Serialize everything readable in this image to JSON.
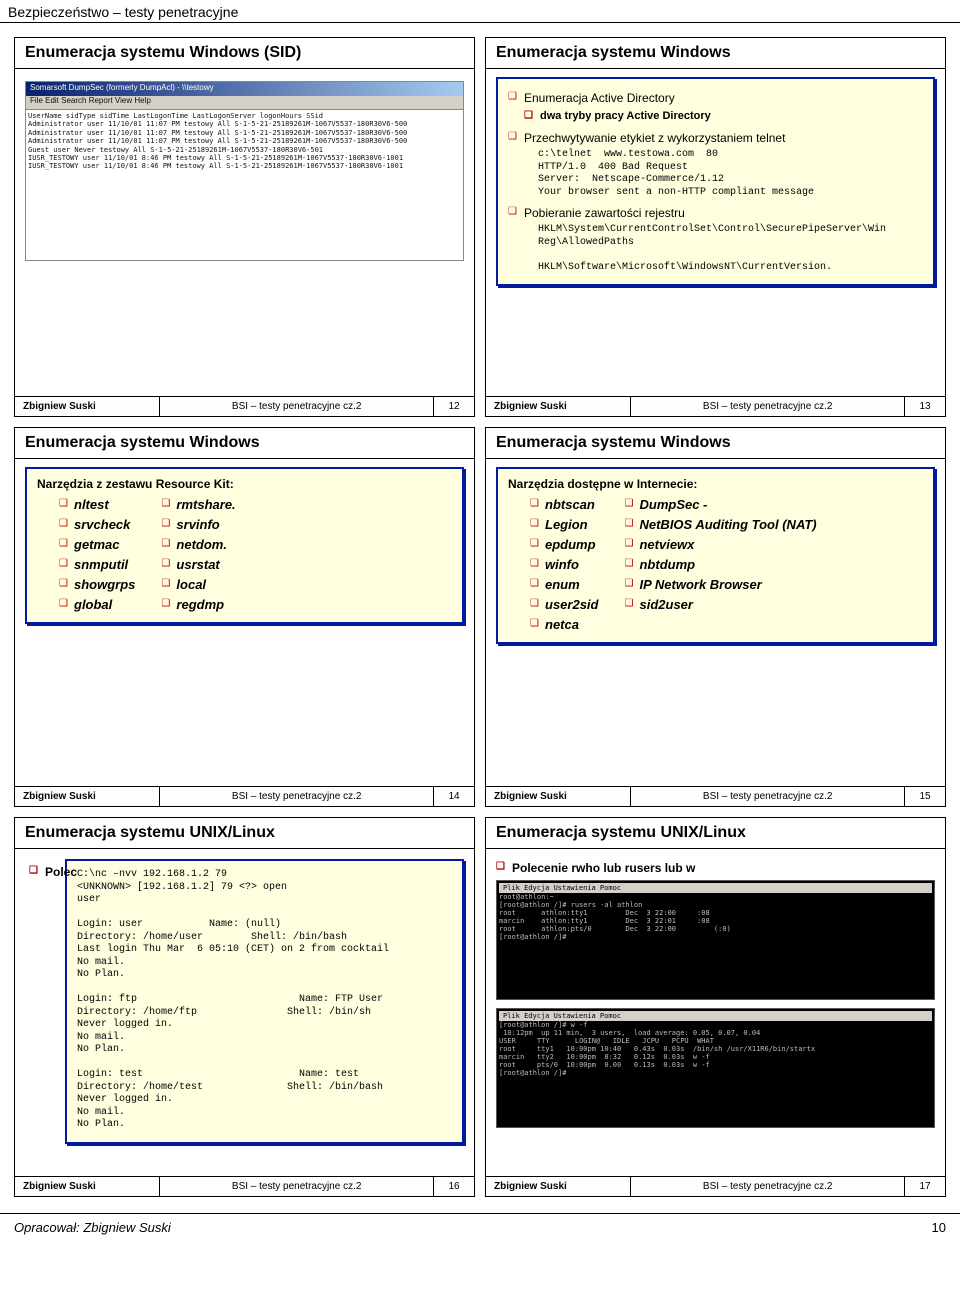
{
  "page": {
    "header": "Bezpieczeństwo – testy penetracyjne",
    "footer_author": "Opracował: Zbigniew Suski",
    "footer_page": "10"
  },
  "common": {
    "author": "Zbigniew Suski",
    "course": "BSI – testy penetracyjne cz.2"
  },
  "s12": {
    "title": "Enumeracja systemu Windows (SID)",
    "num": "12",
    "win_title": "Somarsoft DumpSec (formerly DumpAcl) - \\\\testowy",
    "win_menu": "File  Edit  Search  Report  View  Help",
    "rows": [
      "UserName       sidType sidTime LastLogonTime      LastLogonServer logonHours SSid",
      "Administrator  user           11/10/01 11:07 PM testowy         All        S-1-5-21-25189261M-1067V5537-180R30V6-500",
      "Administrator  user           11/10/01 11:07 PM testowy         All        S-1-5-21-25189261M-1067V5537-180R30V6-500",
      "Administrator  user           11/10/01 11:07 PM testowy         All        S-1-5-21-25189261M-1067V5537-180R30V6-500",
      "Guest          user           Never             testowy         All        S-1-5-21-25189261M-1067V5537-180R30V6-501",
      "IUSR_TESTOWY   user           11/10/01 8:46 PM  testowy         All        S-1-5-21-25189261M-1067V5537-180R30V6-1001",
      "IUSR_TESTOWY   user           11/10/01 8:46 PM  testowy         All        S-1-5-21-25189261M-1067V5537-180R30V6-1001"
    ]
  },
  "s13": {
    "title": "Enumeracja systemu Windows",
    "num": "13",
    "b1": "Enumeracja Active Directory",
    "sub": "dwa tryby pracy Active Directory",
    "b2": "Przechwytywanie etykiet z wykorzystaniem telnet",
    "mono1": "c:\\telnet  www.testowa.com  80\nHTTP/1.0  400 Bad Request\nServer:  Netscape-Commerce/1.12\nYour browser sent a non-HTTP compliant message",
    "b3": "Pobieranie zawartości rejestru",
    "mono2": "HKLM\\System\\CurrentControlSet\\Control\\SecurePipeServer\\Win\nReg\\AllowedPaths\n\nHKLM\\Software\\Microsoft\\WindowsNT\\CurrentVersion."
  },
  "s14": {
    "title": "Enumeracja systemu Windows",
    "num": "14",
    "subhead": "Narzędzia z zestawu Resource Kit:",
    "col1": [
      "nltest",
      "srvcheck",
      "getmac",
      "snmputil",
      "showgrps",
      "global"
    ],
    "col2": [
      "rmtshare.",
      "srvinfo",
      "netdom.",
      "usrstat",
      "local",
      "regdmp"
    ]
  },
  "s15": {
    "title": "Enumeracja systemu Windows",
    "num": "15",
    "subhead": "Narzędzia dostępne w Internecie:",
    "col1": [
      "nbtscan",
      "Legion",
      "epdump",
      "winfo",
      "enum",
      "user2sid",
      "netca"
    ],
    "col2": [
      "DumpSec -",
      "NetBIOS Auditing Tool (NAT)",
      "netviewx",
      "nbtdump",
      "IP Network Browser",
      "sid2user"
    ]
  },
  "s16": {
    "title": "Enumeracja systemu UNIX/Linux",
    "num": "16",
    "b1_prefix": "Polec",
    "mono": "C:\\nc –nvv 192.168.1.2 79\n<UNKNOWN> [192.168.1.2] 79 <?> open\nuser\n\nLogin: user           Name: (null)\nDirectory: /home/user        Shell: /bin/bash\nLast login Thu Mar  6 05:10 (CET) on 2 from cocktail\nNo mail.\nNo Plan.\n\nLogin: ftp                           Name: FTP User\nDirectory: /home/ftp               Shell: /bin/sh\nNever logged in.\nNo mail.\nNo Plan.\n\nLogin: test                          Name: test\nDirectory: /home/test              Shell: /bin/bash\nNever logged in.\nNo mail.\nNo Plan."
  },
  "s17": {
    "title": "Enumeracja systemu UNIX/Linux",
    "num": "17",
    "b1": "Polecenie rwho lub rusers lub w",
    "term1_title": "Plik  Edycja  Ustawienia  Pomoc",
    "term1": "root@athlon:~\n[root@athlon /]# rusers -al athlon\nroot      athlon:tty1         Dec  3 22:00     :08\nmarcin    athlon:tty1         Dec  3 22:01     :08\nroot      athlon:pts/0        Dec  3 22:00         (:0)\n[root@athlon /]#",
    "term2_title": "Plik  Edycja  Ustawienia  Pomoc",
    "term2": "[root@athlon /]# w -f\n 10:12pm  up 11 min,  3 users,  load average: 0.05, 0.07, 0.04\nUSER     TTY      LOGIN@   IDLE   JCPU   PCPU  WHAT\nroot     tty1   10:00pm 10:40   0.43s  0.03s  /bin/sh /usr/X11R6/bin/startx\nmarcin   tty2   10:00pm  8:32   0.12s  0.03s  w -f\nroot     pts/0  10:00pm  0.00   0.13s  0.03s  w -f\n[root@athlon /]#"
  }
}
